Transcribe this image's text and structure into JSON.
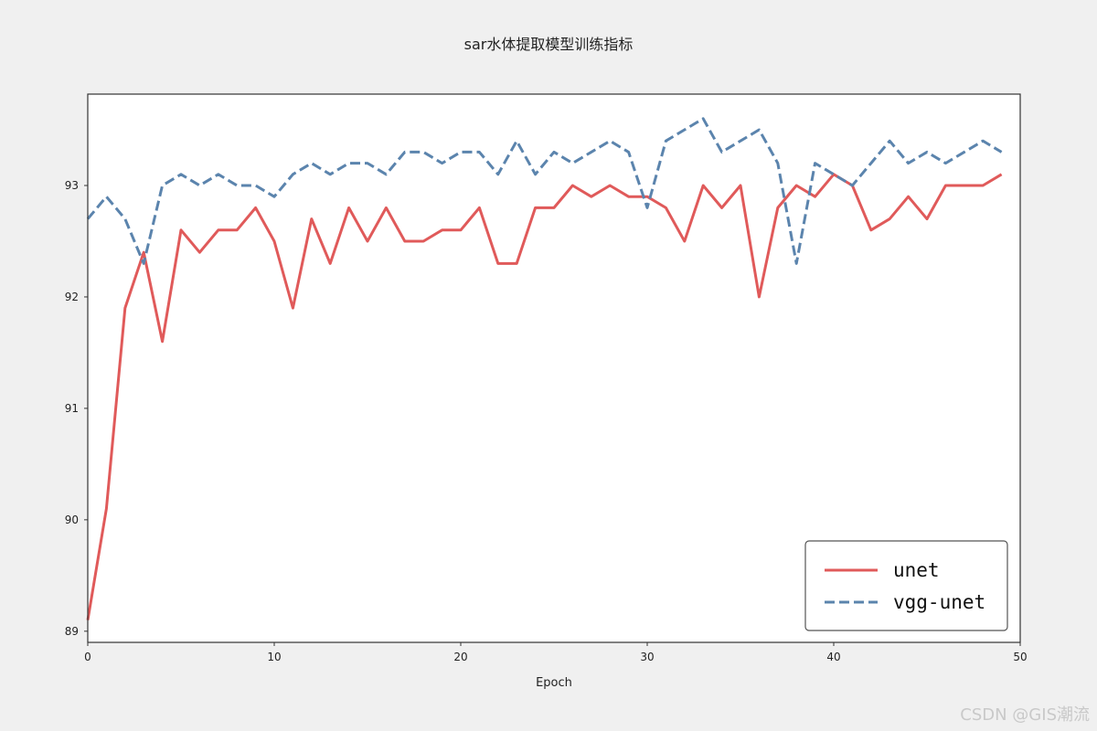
{
  "chart_data": {
    "type": "line",
    "title": "sar水体提取模型训练指标",
    "xlabel": "Epoch",
    "ylabel": "",
    "xlim": [
      0,
      50
    ],
    "ylim": [
      88.9,
      93.82
    ],
    "xticks": [
      0,
      10,
      20,
      30,
      40,
      50
    ],
    "yticks": [
      89,
      90,
      91,
      92,
      93
    ],
    "grid": false,
    "legend_position": "bottom-right",
    "x": [
      0,
      1,
      2,
      3,
      4,
      5,
      6,
      7,
      8,
      9,
      10,
      11,
      12,
      13,
      14,
      15,
      16,
      17,
      18,
      19,
      20,
      21,
      22,
      23,
      24,
      25,
      26,
      27,
      28,
      29,
      30,
      31,
      32,
      33,
      34,
      35,
      36,
      37,
      38,
      39,
      40,
      41,
      42,
      43,
      44,
      45,
      46,
      47,
      48,
      49
    ],
    "series": [
      {
        "name": "unet",
        "color": "#e05a5a",
        "dash": "solid",
        "values": [
          89.1,
          90.1,
          91.9,
          92.4,
          91.6,
          92.6,
          92.4,
          92.6,
          92.6,
          92.8,
          92.5,
          91.9,
          92.7,
          92.3,
          92.8,
          92.5,
          92.8,
          92.5,
          92.5,
          92.6,
          92.6,
          92.8,
          92.3,
          92.3,
          92.8,
          92.8,
          93.0,
          92.9,
          93.0,
          92.9,
          92.9,
          92.8,
          92.5,
          93.0,
          92.8,
          93.0,
          92.0,
          92.8,
          93.0,
          92.9,
          93.1,
          93.0,
          92.6,
          92.7,
          92.9,
          92.7,
          93.0,
          93.0,
          93.0,
          93.1
        ]
      },
      {
        "name": "vgg-unet",
        "color": "#5b84ad",
        "dash": "dashed",
        "values": [
          92.7,
          92.9,
          92.7,
          92.3,
          93.0,
          93.1,
          93.0,
          93.1,
          93.0,
          93.0,
          92.9,
          93.1,
          93.2,
          93.1,
          93.2,
          93.2,
          93.1,
          93.3,
          93.3,
          93.2,
          93.3,
          93.3,
          93.1,
          93.4,
          93.1,
          93.3,
          93.2,
          93.3,
          93.4,
          93.3,
          92.8,
          93.4,
          93.5,
          93.6,
          93.3,
          93.4,
          93.5,
          93.2,
          92.3,
          93.2,
          93.1,
          93.0,
          93.2,
          93.4,
          93.2,
          93.3,
          93.2,
          93.3,
          93.4,
          93.3
        ]
      }
    ]
  },
  "watermark": "CSDN @GIS潮流"
}
